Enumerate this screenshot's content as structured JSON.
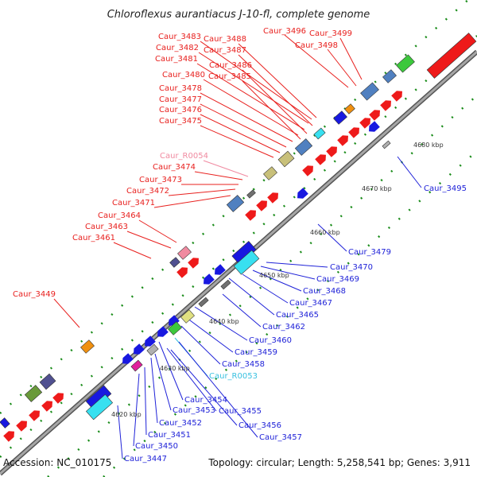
{
  "title": "Chloroflexus aurantiacus J-10-fl, complete genome",
  "footer": {
    "accession": "Accession: NC_010175",
    "summary": "Topology: circular; Length: 5,258,541 bp; Genes: 3,911"
  },
  "colors": {
    "forward_label": "#e8201e",
    "reverse_label": "#1f22d8",
    "rna_forward_label": "#f08aa0",
    "rna_reverse_label": "#38c0e0",
    "axis": "#808080",
    "dots": "#1a8c1a"
  },
  "ticks": [
    {
      "label": "4620 kbp"
    },
    {
      "label": "4630 kbp"
    },
    {
      "label": "4640 kbp"
    },
    {
      "label": "4650 kbp"
    },
    {
      "label": "4660 kbp"
    },
    {
      "label": "4670 kbp"
    },
    {
      "label": "4680 kbp"
    }
  ],
  "forward_labels": [
    {
      "text": "Caur_3496"
    },
    {
      "text": "Caur_3499"
    },
    {
      "text": "Caur_3498"
    },
    {
      "text": "Caur_3483"
    },
    {
      "text": "Caur_3488"
    },
    {
      "text": "Caur_3482"
    },
    {
      "text": "Caur_3487"
    },
    {
      "text": "Caur_3481"
    },
    {
      "text": "Caur_3486"
    },
    {
      "text": "Caur_3480"
    },
    {
      "text": "Caur_3485"
    },
    {
      "text": "Caur_3478"
    },
    {
      "text": "Caur_3477"
    },
    {
      "text": "Caur_3476"
    },
    {
      "text": "Caur_3475"
    },
    {
      "text": "Caur_R0054"
    },
    {
      "text": "Caur_3474"
    },
    {
      "text": "Caur_3473"
    },
    {
      "text": "Caur_3472"
    },
    {
      "text": "Caur_3471"
    },
    {
      "text": "Caur_3464"
    },
    {
      "text": "Caur_3463"
    },
    {
      "text": "Caur_3461"
    },
    {
      "text": "Caur_3449"
    }
  ],
  "reverse_labels": [
    {
      "text": "Caur_3495"
    },
    {
      "text": "Caur_3479"
    },
    {
      "text": "Caur_3470"
    },
    {
      "text": "Caur_3469"
    },
    {
      "text": "Caur_3468"
    },
    {
      "text": "Caur_3467"
    },
    {
      "text": "Caur_3465"
    },
    {
      "text": "Caur_3462"
    },
    {
      "text": "Caur_3460"
    },
    {
      "text": "Caur_3459"
    },
    {
      "text": "Caur_3458"
    },
    {
      "text": "Caur_R0053"
    },
    {
      "text": "Caur_3454"
    },
    {
      "text": "Caur_3455"
    },
    {
      "text": "Caur_3453"
    },
    {
      "text": "Caur_3452"
    },
    {
      "text": "Caur_3456"
    },
    {
      "text": "Caur_3451"
    },
    {
      "text": "Caur_3457"
    },
    {
      "text": "Caur_3450"
    },
    {
      "text": "Caur_3447"
    }
  ]
}
